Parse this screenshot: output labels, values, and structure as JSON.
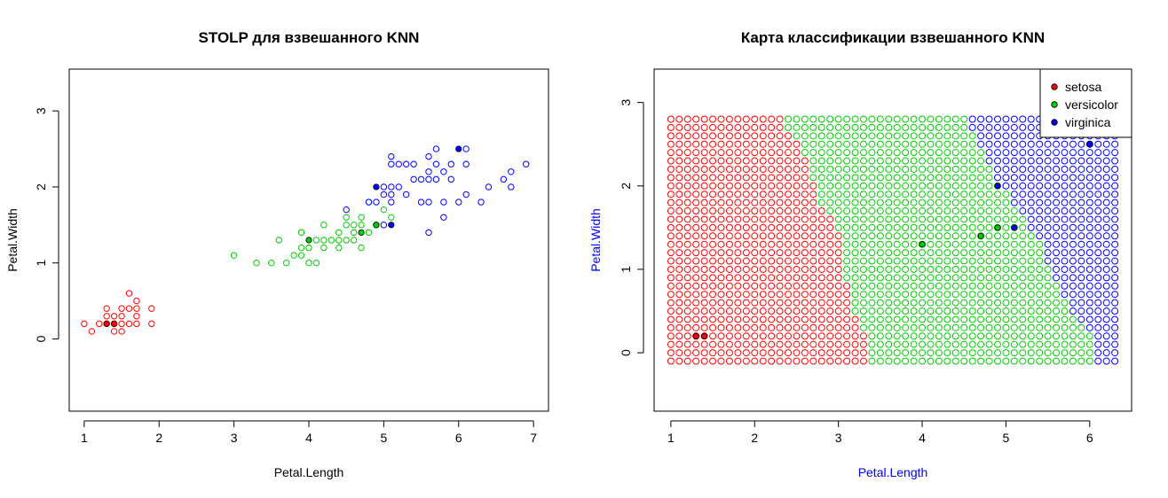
{
  "chart_data": [
    {
      "type": "scatter",
      "title": "STOLP для взвешанного KNN",
      "xlabel": "Petal.Length",
      "ylabel": "Petal.Width",
      "xlim": [
        0.8,
        7.2
      ],
      "ylim": [
        -0.95,
        3.55
      ],
      "xticks": [
        "1",
        "2",
        "3",
        "4",
        "5",
        "6",
        "7"
      ],
      "yticks": [
        "0",
        "1",
        "2",
        "3"
      ],
      "series": [
        {
          "color": "#ff0000",
          "points": [
            [
              1.0,
              0.2
            ],
            [
              1.1,
              0.1
            ],
            [
              1.2,
              0.2
            ],
            [
              1.3,
              0.2
            ],
            [
              1.3,
              0.3
            ],
            [
              1.3,
              0.4
            ],
            [
              1.4,
              0.2
            ],
            [
              1.4,
              0.3
            ],
            [
              1.4,
              0.1
            ],
            [
              1.5,
              0.2
            ],
            [
              1.5,
              0.1
            ],
            [
              1.5,
              0.4
            ],
            [
              1.5,
              0.3
            ],
            [
              1.6,
              0.2
            ],
            [
              1.6,
              0.4
            ],
            [
              1.6,
              0.6
            ],
            [
              1.7,
              0.2
            ],
            [
              1.7,
              0.3
            ],
            [
              1.7,
              0.5
            ],
            [
              1.7,
              0.4
            ],
            [
              1.9,
              0.2
            ],
            [
              1.9,
              0.4
            ]
          ],
          "prototypes": [
            [
              1.3,
              0.2
            ],
            [
              1.4,
              0.2
            ]
          ]
        },
        {
          "color": "#00cd00",
          "points": [
            [
              3.0,
              1.1
            ],
            [
              3.3,
              1.0
            ],
            [
              3.5,
              1.0
            ],
            [
              3.6,
              1.3
            ],
            [
              3.7,
              1.0
            ],
            [
              3.8,
              1.1
            ],
            [
              3.9,
              1.1
            ],
            [
              3.9,
              1.2
            ],
            [
              3.9,
              1.4
            ],
            [
              4.0,
              1.0
            ],
            [
              4.0,
              1.2
            ],
            [
              4.1,
              1.0
            ],
            [
              4.1,
              1.3
            ],
            [
              4.2,
              1.2
            ],
            [
              4.2,
              1.3
            ],
            [
              4.2,
              1.5
            ],
            [
              4.3,
              1.3
            ],
            [
              4.4,
              1.2
            ],
            [
              4.4,
              1.3
            ],
            [
              4.4,
              1.4
            ],
            [
              4.5,
              1.3
            ],
            [
              4.5,
              1.5
            ],
            [
              4.5,
              1.6
            ],
            [
              4.6,
              1.3
            ],
            [
              4.6,
              1.4
            ],
            [
              4.6,
              1.5
            ],
            [
              4.7,
              1.2
            ],
            [
              4.7,
              1.5
            ],
            [
              4.7,
              1.6
            ],
            [
              4.8,
              1.4
            ],
            [
              4.8,
              1.8
            ],
            [
              4.9,
              1.5
            ],
            [
              5.0,
              1.7
            ],
            [
              5.1,
              1.6
            ]
          ],
          "prototypes": [
            [
              4.0,
              1.3
            ],
            [
              4.7,
              1.4
            ],
            [
              4.9,
              1.5
            ]
          ]
        },
        {
          "color": "#0000ff",
          "points": [
            [
              4.5,
              1.7
            ],
            [
              4.8,
              1.8
            ],
            [
              4.9,
              1.8
            ],
            [
              5.0,
              1.5
            ],
            [
              5.0,
              1.9
            ],
            [
              5.0,
              2.0
            ],
            [
              5.1,
              1.8
            ],
            [
              5.1,
              1.9
            ],
            [
              5.1,
              2.0
            ],
            [
              5.1,
              2.3
            ],
            [
              5.1,
              2.4
            ],
            [
              5.2,
              2.0
            ],
            [
              5.2,
              2.3
            ],
            [
              5.3,
              1.9
            ],
            [
              5.3,
              2.3
            ],
            [
              5.4,
              2.1
            ],
            [
              5.4,
              2.3
            ],
            [
              5.5,
              1.8
            ],
            [
              5.5,
              2.1
            ],
            [
              5.6,
              1.4
            ],
            [
              5.6,
              1.8
            ],
            [
              5.6,
              2.1
            ],
            [
              5.6,
              2.2
            ],
            [
              5.6,
              2.4
            ],
            [
              5.7,
              2.1
            ],
            [
              5.7,
              2.3
            ],
            [
              5.7,
              2.5
            ],
            [
              5.8,
              1.6
            ],
            [
              5.8,
              1.8
            ],
            [
              5.8,
              2.2
            ],
            [
              5.9,
              2.1
            ],
            [
              5.9,
              2.3
            ],
            [
              6.0,
              1.8
            ],
            [
              6.1,
              1.9
            ],
            [
              6.1,
              2.3
            ],
            [
              6.1,
              2.5
            ],
            [
              6.3,
              1.8
            ],
            [
              6.4,
              2.0
            ],
            [
              6.6,
              2.1
            ],
            [
              6.7,
              2.0
            ],
            [
              6.7,
              2.2
            ],
            [
              6.9,
              2.3
            ]
          ],
          "prototypes": [
            [
              4.9,
              2.0
            ],
            [
              5.1,
              1.5
            ],
            [
              6.0,
              2.5
            ]
          ]
        }
      ],
      "grid": false
    },
    {
      "type": "scatter",
      "title": "Карта классификации взвешанного KNN",
      "xlabel": "Petal.Length",
      "ylabel": "Petal.Width",
      "label_color": "#0000ff",
      "xlim": [
        0.8,
        6.5
      ],
      "ylim": [
        -0.7,
        3.4
      ],
      "xticks": [
        "1",
        "2",
        "3",
        "4",
        "5",
        "6"
      ],
      "yticks": [
        "0",
        "1",
        "2",
        "3"
      ],
      "grid_x": [
        1.0,
        6.3,
        0.1
      ],
      "grid_y": [
        -0.1,
        2.8,
        0.1
      ],
      "boundaries": [
        [
          -0.1,
          3.3,
          6.0
        ],
        [
          0.0,
          3.3,
          6.0
        ],
        [
          0.1,
          3.3,
          6.0
        ],
        [
          0.2,
          3.3,
          6.0
        ],
        [
          0.3,
          3.2,
          5.9
        ],
        [
          0.4,
          3.2,
          5.8
        ],
        [
          0.5,
          3.1,
          5.7
        ],
        [
          0.6,
          3.1,
          5.7
        ],
        [
          0.7,
          3.1,
          5.6
        ],
        [
          0.8,
          3.1,
          5.6
        ],
        [
          0.9,
          3.0,
          5.5
        ],
        [
          1.0,
          3.0,
          5.5
        ],
        [
          1.1,
          3.0,
          5.4
        ],
        [
          1.2,
          3.0,
          5.4
        ],
        [
          1.3,
          3.0,
          5.4
        ],
        [
          1.4,
          3.0,
          5.3
        ],
        [
          1.5,
          2.9,
          5.2
        ],
        [
          1.6,
          2.9,
          5.2
        ],
        [
          1.7,
          2.8,
          5.1
        ],
        [
          1.8,
          2.7,
          5.0
        ],
        [
          1.9,
          2.7,
          5.0
        ],
        [
          2.0,
          2.7,
          4.9
        ],
        [
          2.1,
          2.6,
          4.8
        ],
        [
          2.2,
          2.6,
          4.8
        ],
        [
          2.3,
          2.6,
          4.7
        ],
        [
          2.4,
          2.5,
          4.7
        ],
        [
          2.5,
          2.5,
          4.6
        ],
        [
          2.6,
          2.4,
          4.6
        ],
        [
          2.7,
          2.3,
          4.5
        ],
        [
          2.8,
          2.3,
          4.5
        ]
      ],
      "prototypes": [
        {
          "x": 1.3,
          "y": 0.2,
          "class": "setosa"
        },
        {
          "x": 1.4,
          "y": 0.2,
          "class": "setosa"
        },
        {
          "x": 4.0,
          "y": 1.3,
          "class": "versicolor"
        },
        {
          "x": 4.7,
          "y": 1.4,
          "class": "versicolor"
        },
        {
          "x": 4.9,
          "y": 1.5,
          "class": "versicolor"
        },
        {
          "x": 4.9,
          "y": 2.0,
          "class": "virginica"
        },
        {
          "x": 5.1,
          "y": 1.5,
          "class": "virginica"
        },
        {
          "x": 6.0,
          "y": 2.5,
          "class": "virginica"
        }
      ],
      "legend": {
        "position": "top-right",
        "entries": [
          {
            "label": "setosa",
            "color": "#ff0000"
          },
          {
            "label": "versicolor",
            "color": "#00cd00"
          },
          {
            "label": "virginica",
            "color": "#0000ff"
          }
        ]
      },
      "grid": false
    }
  ],
  "class_colors": {
    "setosa": "#ff0000",
    "versicolor": "#00cd00",
    "virginica": "#0000ff"
  }
}
